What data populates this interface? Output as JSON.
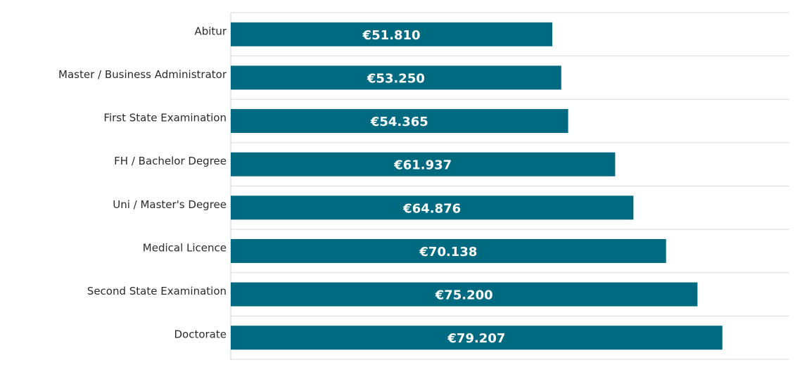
{
  "chart_data": {
    "type": "bar",
    "orientation": "horizontal",
    "title": "",
    "xlabel": "",
    "ylabel": "",
    "categories": [
      "Abitur",
      "Master / Business Administrator",
      "First State Examination",
      "FH / Bachelor Degree",
      "Uni / Master's Degree",
      "Medical Licence",
      "Second State Examination",
      "Doctorate"
    ],
    "values": [
      51810,
      53250,
      54365,
      61937,
      64876,
      70138,
      75200,
      79207
    ],
    "value_labels": [
      "€51.810",
      "€53.250",
      "€54.365",
      "€61.937",
      "€64.876",
      "€70.138",
      "€75.200",
      "€79.207"
    ],
    "xlim": [
      0,
      90000
    ],
    "grid": "horizontal separators",
    "legend": "none",
    "bar_color": "#006a80",
    "grid_color": "#d9d9d9",
    "axis_color": "#d0d0d0"
  }
}
